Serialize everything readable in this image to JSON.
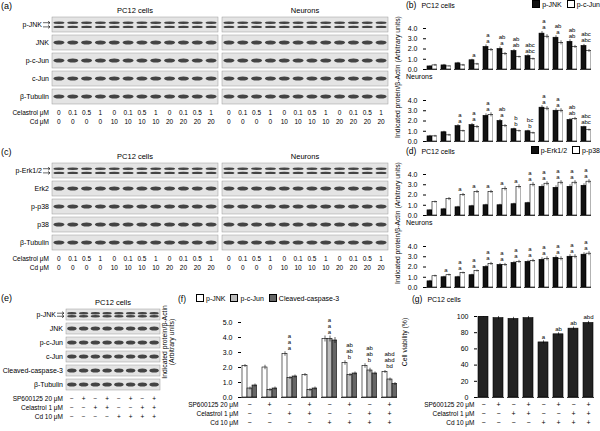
{
  "blots": [
    {
      "panel_label": "(a)",
      "groups": [
        "PC12 cells",
        "Neurons"
      ],
      "rows": [
        {
          "label": "p-JNK",
          "doublet": true
        },
        {
          "label": "JNK",
          "doublet": false
        },
        {
          "label": "p-c-Jun",
          "doublet": false
        },
        {
          "label": "c-Jun",
          "doublet": false
        },
        {
          "label": "β-Tubulin",
          "doublet": false
        }
      ],
      "conditions": [
        {
          "label": "Celastrol μM",
          "values": [
            "0",
            "0.1",
            "0.5",
            "1",
            "0",
            "0.1",
            "0.5",
            "1",
            "0",
            "0.1",
            "0.5",
            "1"
          ]
        },
        {
          "label": "Cd μM",
          "values": [
            "0",
            "0",
            "0",
            "0",
            "10",
            "10",
            "10",
            "10",
            "20",
            "20",
            "20",
            "20"
          ]
        }
      ]
    },
    {
      "panel_label": "(c)",
      "groups": [
        "PC12 cells",
        "Neurons"
      ],
      "rows": [
        {
          "label": "p-Erk1/2",
          "doublet": true
        },
        {
          "label": "Erk2",
          "doublet": false
        },
        {
          "label": "p-p38",
          "doublet": false
        },
        {
          "label": "p38",
          "doublet": false
        },
        {
          "label": "β-Tubulin",
          "doublet": false
        }
      ],
      "conditions": [
        {
          "label": "Celastrol μM",
          "values": [
            "0",
            "0.1",
            "0.5",
            "1",
            "0",
            "0.1",
            "0.5",
            "1",
            "0",
            "0.1",
            "0.5",
            "1"
          ]
        },
        {
          "label": "Cd μM",
          "values": [
            "0",
            "0",
            "0",
            "0",
            "10",
            "10",
            "10",
            "10",
            "20",
            "20",
            "20",
            "20"
          ]
        }
      ]
    },
    {
      "panel_label": "(e)",
      "groups": [
        "PC12 cells"
      ],
      "rows": [
        {
          "label": "p-JNK",
          "doublet": true
        },
        {
          "label": "JNK",
          "doublet": false
        },
        {
          "label": "p-c-Jun",
          "doublet": false
        },
        {
          "label": "c-Jun",
          "doublet": false
        },
        {
          "label": "Cleaved-caspase-3",
          "doublet": false
        },
        {
          "label": "β-Tubulin",
          "doublet": false
        }
      ],
      "conditions": [
        {
          "label": "SP600125 20 μM",
          "values": [
            "−",
            "+",
            "−",
            "+",
            "−",
            "+",
            "−",
            "+"
          ]
        },
        {
          "label": "Celastrol 1 μM",
          "values": [
            "−",
            "−",
            "+",
            "+",
            "−",
            "−",
            "+",
            "+"
          ]
        },
        {
          "label": "Cd 10 μM",
          "values": [
            "−",
            "−",
            "−",
            "−",
            "+",
            "+",
            "+",
            "+"
          ]
        }
      ]
    }
  ],
  "chart_data": [
    {
      "panel_label": "(b)",
      "type": "bar",
      "title": "PC12 cells",
      "ylabel": "Indicated protein/β-Actin (Arbitrary units)",
      "categories": [
        null,
        null,
        null,
        null,
        null,
        null,
        null,
        null,
        null,
        null,
        null,
        null
      ],
      "ylim": [
        0,
        4
      ],
      "yticks": [
        0,
        1,
        2,
        3,
        4
      ],
      "legend": "top-right",
      "tick_labels": "y",
      "series": [
        {
          "name": "p-JNK",
          "color": "#111111",
          "values": [
            0.3,
            0.4,
            0.6,
            0.9,
            2.2,
            2.0,
            1.8,
            1.3,
            3.5,
            3.1,
            2.7,
            2.3
          ],
          "errors": [
            0.05,
            0.1,
            0.1,
            0.1,
            0.2,
            0.2,
            0.15,
            0.15,
            0.2,
            0.2,
            0.2,
            0.15
          ],
          "annotations": [
            null,
            null,
            null,
            "a",
            "a",
            "a",
            "ab",
            "abc",
            "a",
            "a",
            "ab",
            "abc"
          ]
        },
        {
          "name": "p-c-Jun",
          "color": "#ffffff",
          "values": [
            0.4,
            0.3,
            0.4,
            0.5,
            1.9,
            1.5,
            1.2,
            1.0,
            3.2,
            2.6,
            2.2,
            1.8
          ],
          "errors": [
            0.1,
            0.05,
            0.1,
            0.1,
            0.15,
            0.15,
            0.1,
            0.1,
            0.2,
            0.2,
            0.15,
            0.15
          ],
          "annotations": [
            null,
            null,
            null,
            null,
            "a",
            "ab",
            "ab",
            "abc",
            "a",
            "ab",
            "ab",
            "abc"
          ]
        }
      ]
    },
    {
      "type": "bar",
      "title": "Neurons",
      "categories": [
        null,
        null,
        null,
        null,
        null,
        null,
        null,
        null,
        null,
        null,
        null,
        null
      ],
      "ylim": [
        0,
        4
      ],
      "yticks": [
        0,
        1,
        2,
        3,
        4
      ],
      "tick_labels": "y",
      "series": [
        {
          "name": "p-JNK",
          "color": "#111111",
          "values": [
            0.5,
            0.9,
            1.5,
            1.6,
            2.5,
            2.0,
            1.2,
            1.0,
            3.3,
            3.0,
            2.1,
            1.4
          ],
          "errors": [
            0.1,
            0.1,
            0.15,
            0.15,
            0.2,
            0.15,
            0.1,
            0.1,
            0.2,
            0.2,
            0.15,
            0.1
          ],
          "annotations": [
            null,
            null,
            "a",
            "a",
            "a",
            "a",
            "b",
            "b",
            "a",
            "a",
            "ab",
            "abc"
          ]
        },
        {
          "name": "p-c-Jun",
          "color": "#ffffff",
          "values": [
            0.5,
            0.6,
            1.0,
            1.4,
            2.6,
            1.5,
            1.0,
            0.8,
            3.2,
            3.0,
            2.2,
            1.1
          ],
          "errors": [
            0.1,
            0.1,
            0.1,
            0.15,
            0.2,
            0.15,
            0.1,
            0.1,
            0.2,
            0.2,
            0.15,
            0.1
          ],
          "annotations": [
            null,
            null,
            "a",
            "a",
            "a",
            "ab",
            "b",
            "bc",
            "a",
            "a",
            "ab",
            "abc"
          ]
        }
      ]
    },
    {
      "panel_label": "(d)",
      "type": "bar",
      "title": "PC12 cells",
      "ylabel": "Indicated protein/β-Actin (Arbitrary units)",
      "categories": [
        null,
        null,
        null,
        null,
        null,
        null,
        null,
        null,
        null,
        null,
        null,
        null
      ],
      "ylim": [
        0,
        4
      ],
      "yticks": [
        0,
        1,
        2,
        3,
        4
      ],
      "legend": "top-right",
      "tick_labels": "y",
      "series": [
        {
          "name": "p-Erk1/2",
          "color": "#111111",
          "values": [
            0.5,
            0.6,
            0.8,
            0.9,
            1.0,
            1.0,
            1.1,
            1.2,
            2.8,
            2.7,
            2.8,
            2.9
          ],
          "errors": [
            0.05,
            0.1,
            0.1,
            0.1,
            0.1,
            0.1,
            0.1,
            0.1,
            0.2,
            0.2,
            0.2,
            0.2
          ],
          "annotations": [
            null,
            null,
            null,
            null,
            null,
            null,
            null,
            "a",
            "a",
            "a",
            "a",
            "a"
          ]
        },
        {
          "name": "p-p38",
          "color": "#ffffff",
          "values": [
            1.3,
            1.6,
            2.0,
            2.3,
            2.3,
            2.6,
            2.8,
            3.0,
            3.1,
            3.2,
            3.2,
            3.3
          ],
          "errors": [
            0.1,
            0.15,
            0.15,
            0.15,
            0.15,
            0.2,
            0.2,
            0.2,
            0.2,
            0.2,
            0.2,
            0.2
          ],
          "annotations": [
            null,
            null,
            "a",
            "a",
            "a",
            "a",
            "a",
            "a",
            "a",
            "a",
            "a",
            "a"
          ]
        }
      ]
    },
    {
      "type": "bar",
      "title": "Neurons",
      "categories": [
        null,
        null,
        null,
        null,
        null,
        null,
        null,
        null,
        null,
        null,
        null,
        null
      ],
      "ylim": [
        0,
        4
      ],
      "yticks": [
        0,
        1,
        2,
        3,
        4
      ],
      "tick_labels": "y",
      "series": [
        {
          "name": "p-Erk1/2",
          "color": "#111111",
          "values": [
            0.6,
            1.0,
            1.0,
            1.2,
            2.0,
            2.2,
            2.4,
            2.5,
            2.7,
            2.9,
            3.0,
            3.2
          ],
          "errors": [
            0.1,
            0.1,
            0.1,
            0.1,
            0.15,
            0.15,
            0.15,
            0.15,
            0.2,
            0.2,
            0.2,
            0.2
          ],
          "annotations": [
            null,
            "a",
            "a",
            "a",
            "a",
            "a",
            "a",
            "a",
            "a",
            "a",
            "a",
            "a"
          ]
        },
        {
          "name": "p-p38",
          "color": "#ffffff",
          "values": [
            1.1,
            1.2,
            1.4,
            1.6,
            2.3,
            2.2,
            2.5,
            2.6,
            2.8,
            2.8,
            3.0,
            3.3
          ],
          "errors": [
            0.1,
            0.1,
            0.1,
            0.1,
            0.15,
            0.15,
            0.15,
            0.15,
            0.2,
            0.2,
            0.2,
            0.2
          ],
          "annotations": [
            null,
            null,
            "a",
            "a",
            "a",
            "a",
            "a",
            "a",
            "a",
            "a",
            "a",
            "a"
          ]
        }
      ]
    },
    {
      "panel_label": "(f)",
      "type": "bar",
      "ylabel": "Indicated protein/β-Actin (Arbitrary units)",
      "categories": [
        null,
        null,
        null,
        null,
        null,
        null,
        null,
        null
      ],
      "ylim": [
        0,
        5
      ],
      "yticks": [
        0,
        1,
        2,
        3,
        4,
        5
      ],
      "legend": "top-left",
      "tick_labels": "y",
      "conditions": [
        {
          "label": "SP600125 20 μM",
          "values": [
            "−",
            "+",
            "−",
            "+",
            "−",
            "+",
            "−",
            "+"
          ]
        },
        {
          "label": "Celastrol 1 μM",
          "values": [
            "−",
            "−",
            "+",
            "+",
            "−",
            "−",
            "+",
            "+"
          ]
        },
        {
          "label": "Cd 10 μM",
          "values": [
            "−",
            "−",
            "−",
            "−",
            "+",
            "+",
            "+",
            "+"
          ]
        }
      ],
      "series": [
        {
          "name": "p-JNK",
          "color": "#ffffff",
          "values": [
            2.1,
            2.0,
            2.9,
            1.5,
            3.9,
            2.3,
            2.1,
            1.7
          ],
          "errors": [
            0.1,
            0.15,
            0.15,
            0.1,
            0.2,
            0.15,
            0.15,
            0.1
          ],
          "annotations": [
            null,
            null,
            "a",
            null,
            "a",
            "b",
            "b",
            "bd"
          ]
        },
        {
          "name": "p-c-Jun",
          "color": "#bbbbbb",
          "values": [
            0.6,
            0.5,
            1.3,
            0.5,
            3.9,
            1.5,
            1.8,
            1.2
          ],
          "errors": [
            0.1,
            0.1,
            0.1,
            0.1,
            0.2,
            0.1,
            0.15,
            0.1
          ],
          "annotations": [
            null,
            null,
            "a",
            null,
            "a",
            "ab",
            "ab",
            "abd"
          ]
        },
        {
          "name": "Cleaved-caspase-3",
          "color": "#666666",
          "values": [
            0.8,
            0.6,
            1.4,
            0.6,
            3.8,
            1.6,
            1.6,
            0.9
          ],
          "errors": [
            0.1,
            0.1,
            0.1,
            0.1,
            0.2,
            0.1,
            0.1,
            0.1
          ],
          "annotations": [
            null,
            null,
            "a",
            null,
            "a",
            "ab",
            "ab",
            "abd"
          ]
        }
      ]
    },
    {
      "panel_label": "(g)",
      "type": "bar",
      "title": "PC12 cells",
      "ylabel": "Cell viability (%)",
      "categories": [
        null,
        null,
        null,
        null,
        null,
        null,
        null,
        null
      ],
      "ylim": [
        0,
        100
      ],
      "yticks": [
        0,
        20,
        40,
        60,
        80,
        100
      ],
      "tick_labels": "y",
      "conditions": [
        {
          "label": "SP600125 20 μM",
          "values": [
            "−",
            "+",
            "−",
            "+",
            "−",
            "+",
            "−",
            "+"
          ]
        },
        {
          "label": "Celastrol 1 μM",
          "values": [
            "−",
            "−",
            "+",
            "+",
            "−",
            "−",
            "+",
            "+"
          ]
        },
        {
          "label": "Cd 10 μM",
          "values": [
            "−",
            "−",
            "−",
            "−",
            "+",
            "+",
            "+",
            "+"
          ]
        }
      ],
      "series": [
        {
          "name": "Cell viability (%)",
          "color": "#222222",
          "values": [
            100,
            98,
            97,
            98,
            68,
            78,
            85,
            92
          ],
          "errors": [
            1,
            2,
            2,
            2,
            2,
            2,
            2,
            2
          ],
          "annotations": [
            null,
            null,
            null,
            null,
            "a",
            "ab",
            "ab",
            "abd"
          ]
        }
      ]
    }
  ]
}
